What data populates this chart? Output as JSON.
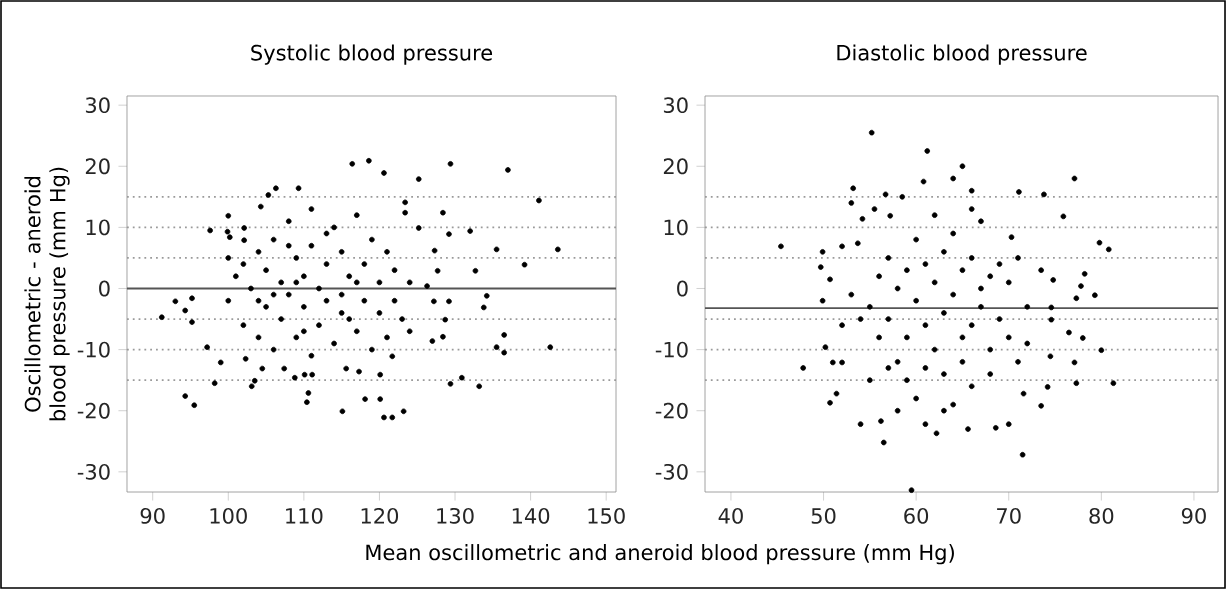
{
  "chart_data": [
    {
      "type": "scatter",
      "title": "Systolic blood pressure",
      "xlabel": "Mean oscillometric and aneroid blood pressure (mm Hg)",
      "ylabel": "Oscillometric - aneroid blood pressure (mm Hg)",
      "xlim": [
        86.6,
        151.3
      ],
      "ylim": [
        -33.3,
        31.5
      ],
      "xticks": [
        90,
        100,
        110,
        120,
        130,
        140,
        150
      ],
      "yticks": [
        -30,
        -20,
        -10,
        0,
        10,
        20,
        30
      ],
      "grid": false,
      "marker": "circle",
      "ref_lines": [
        {
          "axis": "y",
          "value": 0,
          "color": "#555555",
          "line_style": "solid"
        },
        {
          "axis": "y",
          "value": 5,
          "color": "#9a9a9a",
          "line_style": "dotted"
        },
        {
          "axis": "y",
          "value": 10,
          "color": "#9a9a9a",
          "line_style": "dotted"
        },
        {
          "axis": "y",
          "value": 15,
          "color": "#9a9a9a",
          "line_style": "dotted"
        },
        {
          "axis": "y",
          "value": -5,
          "color": "#9a9a9a",
          "line_style": "dotted"
        },
        {
          "axis": "y",
          "value": -10,
          "color": "#9a9a9a",
          "line_style": "dotted"
        },
        {
          "axis": "y",
          "value": -15,
          "color": "#9a9a9a",
          "line_style": "dotted"
        }
      ],
      "series": [
        {
          "color": "#000000",
          "x": [
            91.2,
            93.0,
            94.3,
            95.2,
            95.2,
            94.3,
            95.5,
            98.2,
            99.0,
            97.2,
            100.0,
            97.6,
            106.3,
            109.3,
            116.4,
            118.6,
            120.6,
            125.2,
            129.4,
            137.0,
            141.1,
            143.6,
            139.2,
            135.5,
            132.7,
            132.0,
            129.2,
            128.4,
            134.2,
            133.8,
            136.5,
            135.5,
            136.5,
            142.6,
            130.9,
            129.4,
            133.2,
            123.2,
            121.7,
            120.6,
            120.1,
            118.1,
            115.1,
            110.4,
            110.6,
            103.1,
            103.5,
            102.3,
            104.5,
            107.4,
            108.8,
            110.1,
            111.1,
            115.6,
            117.3,
            120.1,
            121.7,
            127.0,
            128.4,
            128.7,
            127.2,
            129.2,
            127.7,
            126.3,
            125.2,
            123.4,
            123.4,
            127.3,
            104.3,
            105.3,
            102.1,
            102.1,
            99.9,
            100.2,
            100,
            100,
            101,
            102,
            102,
            103,
            104,
            104,
            105,
            105,
            106,
            106,
            107,
            107,
            108,
            108,
            109,
            109,
            110,
            110,
            111,
            111,
            111,
            112,
            112,
            113,
            113,
            114,
            114,
            115,
            115,
            116,
            116,
            117,
            117,
            118,
            118,
            119,
            119,
            120,
            120,
            121,
            121,
            122,
            122,
            123,
            124,
            124,
            106,
            108,
            110,
            113,
            115,
            117,
            104,
            109
          ],
          "values": [
            -4.7,
            -2.1,
            -3.6,
            -1.6,
            -5.5,
            -17.6,
            -19.1,
            -15.5,
            -12.1,
            -9.6,
            11.9,
            9.5,
            16.4,
            16.4,
            20.4,
            20.9,
            18.9,
            17.9,
            20.4,
            19.4,
            14.4,
            6.4,
            3.9,
            6.4,
            2.9,
            9.4,
            8.9,
            12.4,
            -1.2,
            -3.1,
            -7.6,
            -9.6,
            -10.5,
            -9.6,
            -14.6,
            -15.6,
            -16.0,
            -20.1,
            -21.1,
            -21.1,
            -18.1,
            -18.1,
            -20.1,
            -18.6,
            -17.1,
            -16.0,
            -15.1,
            -11.5,
            -13.1,
            -13.1,
            -14.6,
            -14.1,
            -14.1,
            -13.1,
            -13.6,
            -14.1,
            -11.1,
            -8.6,
            -7.9,
            -5.1,
            -2.1,
            -2.1,
            2.9,
            0.4,
            9.9,
            12.4,
            14.1,
            6.2,
            13.4,
            15.3,
            9.9,
            7.9,
            9.3,
            8.4,
            5,
            -2,
            2,
            -6,
            4,
            0,
            -8,
            6,
            -3,
            3,
            -10,
            8,
            1,
            -5,
            11,
            -1,
            5,
            -8,
            2,
            -3,
            13,
            -11,
            7,
            0,
            -6,
            4,
            -2,
            10,
            -9,
            6,
            -1,
            2,
            -5,
            12,
            -7,
            4,
            -2,
            8,
            -10,
            1,
            -4,
            6,
            -8,
            3,
            -2,
            -5,
            1,
            -7,
            -1,
            7,
            -7,
            9,
            -4,
            1,
            -2,
            1
          ]
        }
      ]
    },
    {
      "type": "scatter",
      "title": "Diastolic blood pressure",
      "xlim": [
        37.2,
        92.6
      ],
      "ylim": [
        -33.3,
        31.5
      ],
      "xticks": [
        40,
        50,
        60,
        70,
        80,
        90
      ],
      "yticks": [
        -30,
        -20,
        -10,
        0,
        10,
        20,
        30
      ],
      "grid": false,
      "marker": "circle",
      "ref_lines": [
        {
          "axis": "y",
          "value": -3.2,
          "color": "#555555",
          "line_style": "solid"
        },
        {
          "axis": "y",
          "value": 5,
          "color": "#9a9a9a",
          "line_style": "dotted"
        },
        {
          "axis": "y",
          "value": 10,
          "color": "#9a9a9a",
          "line_style": "dotted"
        },
        {
          "axis": "y",
          "value": 15,
          "color": "#9a9a9a",
          "line_style": "dotted"
        },
        {
          "axis": "y",
          "value": -5,
          "color": "#9a9a9a",
          "line_style": "dotted"
        },
        {
          "axis": "y",
          "value": -10,
          "color": "#9a9a9a",
          "line_style": "dotted"
        },
        {
          "axis": "y",
          "value": -15,
          "color": "#9a9a9a",
          "line_style": "dotted"
        }
      ],
      "series": [
        {
          "color": "#000000",
          "x": [
            45.4,
            47.8,
            55.2,
            61.2,
            65.0,
            77.1,
            53.2,
            53.0,
            56.7,
            58.5,
            60.8,
            64.0,
            66.0,
            71.1,
            73.8,
            75.9,
            79.8,
            80.8,
            78.2,
            77.8,
            79.3,
            77.3,
            80.0,
            81.3,
            77.3,
            77.1,
            78.0,
            76.5,
            73.5,
            71.5,
            70.0,
            68.6,
            65.6,
            62.2,
            61.0,
            56.5,
            54.0,
            56.2,
            50.7,
            51.4,
            50.2,
            51.0,
            52.0,
            49.9,
            49.9,
            49.7,
            50.7,
            52.0,
            53.7,
            54.2,
            55.5,
            57.2,
            70.3,
            73.5,
            74.8,
            74.6,
            74.6,
            74.5,
            74.2,
            71.6,
            59.5,
            55,
            56,
            56,
            57,
            57,
            58,
            58,
            59,
            59,
            60,
            60,
            60,
            61,
            61,
            62,
            62,
            63,
            63,
            63,
            64,
            64,
            64,
            65,
            65,
            65,
            66,
            66,
            66,
            67,
            67,
            67,
            68,
            68,
            69,
            69,
            70,
            70,
            71,
            71,
            72,
            72,
            58,
            62,
            61,
            59,
            57,
            63,
            66,
            55,
            54,
            53,
            52,
            68
          ],
          "values": [
            6.9,
            -13.0,
            25.5,
            22.5,
            20.0,
            18.0,
            16.4,
            14.0,
            15.4,
            15.0,
            17.5,
            18.0,
            16.0,
            15.8,
            15.4,
            11.8,
            7.5,
            6.4,
            2.4,
            0.4,
            -1.1,
            -1.6,
            -10.1,
            -15.5,
            -15.5,
            -12.1,
            -8.1,
            -7.2,
            -19.2,
            -27.2,
            -22.2,
            -22.8,
            -23.0,
            -23.7,
            -22.2,
            -25.2,
            -22.2,
            -21.7,
            -18.7,
            -17.2,
            -9.6,
            -12.1,
            -12.1,
            -2.0,
            6.0,
            3.5,
            1.5,
            6.9,
            7.4,
            11.4,
            13.0,
            11.9,
            8.4,
            3.0,
            1.4,
            -3.1,
            -5.1,
            -11.1,
            -16.1,
            -17.2,
            -33.0,
            -3,
            2,
            -8,
            -5,
            5,
            0,
            -12,
            3,
            -15,
            8,
            -2,
            -18,
            -6,
            4,
            -10,
            1,
            6,
            -4,
            -14,
            9,
            -1,
            -19,
            3,
            -8,
            -12,
            5,
            -6,
            -16,
            0,
            -3,
            11,
            2,
            -10,
            -5,
            4,
            -8,
            1,
            -12,
            5,
            -9,
            -3,
            -20,
            12,
            -13,
            -8,
            -13,
            -20,
            13,
            -15,
            -5,
            -1,
            -6,
            -14
          ]
        }
      ]
    }
  ]
}
